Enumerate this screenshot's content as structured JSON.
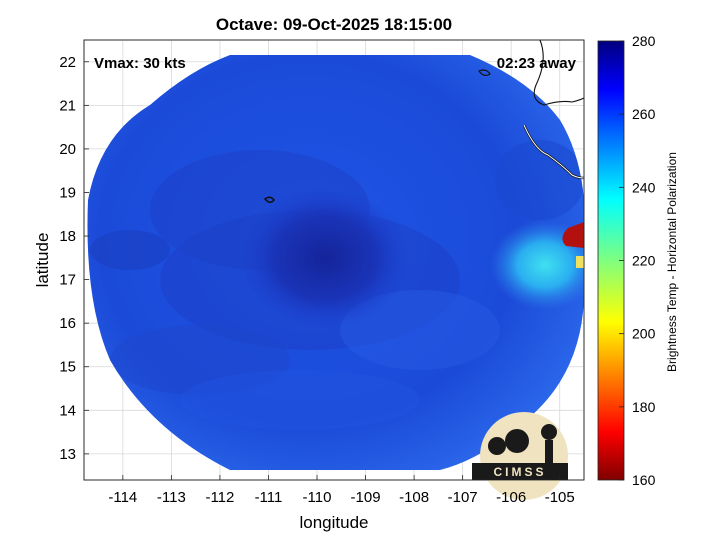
{
  "title": "Octave: 09-Oct-2025 18:15:00",
  "overlay": {
    "vmax": "Vmax: 30 kts",
    "away": "02:23 away"
  },
  "axes": {
    "xlabel": "longitude",
    "ylabel": "latitude",
    "xlim": [
      -114.8,
      -104.5
    ],
    "ylim": [
      12.4,
      22.5
    ],
    "xticks": [
      -114,
      -113,
      -112,
      -111,
      -110,
      -109,
      -108,
      -107,
      -106,
      -105
    ],
    "yticks": [
      13,
      14,
      15,
      16,
      17,
      18,
      19,
      20,
      21,
      22
    ],
    "xtick_labels": [
      "-114",
      "-113",
      "-112",
      "-111",
      "-110",
      "-109",
      "-108",
      "-107",
      "-106",
      "-105"
    ],
    "ytick_labels": [
      "13",
      "14",
      "15",
      "16",
      "17",
      "18",
      "19",
      "20",
      "21",
      "22"
    ],
    "grid": true
  },
  "colorbar": {
    "label": "Brightness Temp - Horizontal Polarization",
    "range": [
      160,
      280
    ],
    "ticks": [
      160,
      180,
      200,
      220,
      240,
      260,
      280
    ],
    "tick_labels": [
      "160",
      "180",
      "200",
      "220",
      "240",
      "260",
      "280"
    ],
    "colormap": "jet"
  },
  "storm": {
    "center_lon": -109.7,
    "center_lat": 17.5
  },
  "logo": {
    "text": "CIMSS"
  },
  "colors": {
    "background_field": "#1f4fe0",
    "storm_core": "#15269a",
    "coast_warm": "#c21313",
    "coast_cyan": "#27c9f0"
  }
}
